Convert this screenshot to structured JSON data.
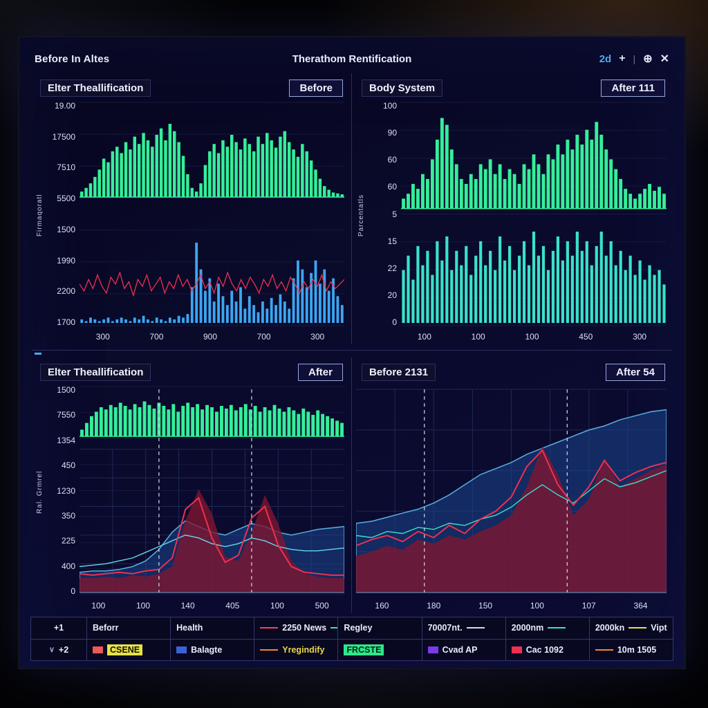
{
  "window": {
    "title_left": "Before In Altes",
    "title_center": "Therathom Rentification",
    "status": "2d",
    "controls": {
      "plus": "+",
      "sep": "|",
      "globe": "⊕",
      "close": "✕"
    }
  },
  "legend": {
    "rows": [
      [
        {
          "label": "+1",
          "first": true
        },
        {
          "label": "Beforr"
        },
        {
          "label": "Health"
        },
        {
          "swatch": "line",
          "color": "#ef4858",
          "label": "2250 News",
          "after": "#39e2c8"
        },
        {
          "label": "Regley"
        },
        {
          "label": "70007nt.",
          "after": "#d8dce8"
        },
        {
          "label": "2000nm",
          "after": "#39e2c8"
        },
        {
          "label": "2000kn",
          "after": "#e8e24a",
          "label2": "Vipt"
        }
      ],
      [
        {
          "label": "+2",
          "chev": "∨",
          "first": true
        },
        {
          "swatch": "box",
          "color": "#ef5858",
          "label": "CSENE",
          "label_bg": "#e8e24a",
          "label_color": "#141408"
        },
        {
          "swatch": "box",
          "color": "#3a62d8",
          "label": "Balagte"
        },
        {
          "swatch": "line",
          "color": "#ef8838",
          "label": "Yregindify",
          "label_color": "#e8d84a"
        },
        {
          "label": "FRCSTE",
          "label_bg": "#2ee88a",
          "label_color": "#06251a"
        },
        {
          "swatch": "box",
          "color": "#7a3ae8",
          "label": "Cvad AP"
        },
        {
          "swatch": "box",
          "color": "#ef3050",
          "label": "Cac 1092"
        },
        {
          "swatch": "line",
          "color": "#ef8838",
          "label": "10m 1505"
        }
      ]
    ]
  },
  "chart_data": [
    {
      "panel": "p1",
      "type": "bar",
      "layout": "spectrum-noise",
      "title": "Elter Theallification",
      "badge": "Before",
      "ylabel": "Firmaqoratl",
      "y_ticks": [
        "19.00",
        "17500",
        "7510",
        "5500",
        "1500",
        "1990",
        "2200",
        "1700"
      ],
      "x_ticks": [
        "300",
        "700",
        "900",
        "700",
        "300"
      ],
      "colors": {
        "green": "#34ef9a",
        "blue": "#3ba6f2",
        "red": "#ef3050"
      },
      "series": {
        "green": [
          0.06,
          0.1,
          0.15,
          0.22,
          0.3,
          0.42,
          0.38,
          0.5,
          0.55,
          0.48,
          0.6,
          0.52,
          0.66,
          0.58,
          0.7,
          0.62,
          0.55,
          0.68,
          0.75,
          0.62,
          0.8,
          0.72,
          0.6,
          0.45,
          0.25,
          0.1,
          0.06,
          0.15,
          0.35,
          0.5,
          0.58,
          0.48,
          0.62,
          0.55,
          0.68,
          0.6,
          0.52,
          0.64,
          0.58,
          0.5,
          0.66,
          0.58,
          0.7,
          0.62,
          0.54,
          0.66,
          0.72,
          0.6,
          0.52,
          0.44,
          0.58,
          0.5,
          0.4,
          0.3,
          0.2,
          0.12,
          0.08,
          0.05,
          0.04,
          0.03
        ],
        "red": [
          0.8,
          0.83,
          0.78,
          0.82,
          0.76,
          0.81,
          0.84,
          0.77,
          0.8,
          0.75,
          0.82,
          0.79,
          0.85,
          0.78,
          0.81,
          0.76,
          0.83,
          0.8,
          0.77,
          0.84,
          0.79,
          0.82,
          0.76,
          0.81,
          0.78,
          0.83,
          0.8,
          0.76,
          0.82,
          0.79,
          0.84,
          0.77,
          0.81,
          0.75,
          0.8,
          0.83,
          0.78,
          0.82,
          0.77,
          0.8,
          0.84,
          0.78,
          0.81,
          0.76,
          0.82,
          0.79,
          0.83,
          0.77,
          0.8,
          0.84,
          0.79,
          0.82,
          0.78,
          0.81,
          0.76,
          0.83,
          0.79,
          0.82,
          0.8,
          0.78
        ],
        "blue": [
          0.02,
          0.01,
          0.03,
          0.02,
          0.01,
          0.02,
          0.03,
          0.01,
          0.02,
          0.03,
          0.02,
          0.01,
          0.03,
          0.02,
          0.04,
          0.02,
          0.01,
          0.03,
          0.02,
          0.01,
          0.03,
          0.02,
          0.04,
          0.03,
          0.05,
          0.2,
          0.45,
          0.3,
          0.18,
          0.25,
          0.12,
          0.22,
          0.15,
          0.1,
          0.18,
          0.12,
          0.2,
          0.08,
          0.15,
          0.1,
          0.06,
          0.12,
          0.08,
          0.14,
          0.1,
          0.16,
          0.12,
          0.08,
          0.25,
          0.35,
          0.3,
          0.2,
          0.28,
          0.35,
          0.22,
          0.3,
          0.18,
          0.25,
          0.15,
          0.1
        ]
      }
    },
    {
      "panel": "p2",
      "type": "bar",
      "layout": "mirror-bars",
      "title": "Body System",
      "badge": "After 111",
      "ylabel": "Parcentatls",
      "y_ticks": [
        "100",
        "90",
        "60",
        "60",
        "5",
        "15",
        "22",
        "20",
        "0"
      ],
      "x_ticks": [
        "100",
        "100",
        "100",
        "450",
        "300"
      ],
      "colors": {
        "green": "#34ef9a",
        "teal": "#39e2c8"
      },
      "series": {
        "green": [
          0.1,
          0.15,
          0.25,
          0.2,
          0.35,
          0.3,
          0.5,
          0.7,
          0.92,
          0.85,
          0.6,
          0.45,
          0.3,
          0.25,
          0.35,
          0.3,
          0.45,
          0.4,
          0.5,
          0.35,
          0.45,
          0.3,
          0.4,
          0.35,
          0.25,
          0.45,
          0.4,
          0.55,
          0.45,
          0.35,
          0.55,
          0.5,
          0.65,
          0.55,
          0.7,
          0.6,
          0.75,
          0.65,
          0.8,
          0.7,
          0.88,
          0.75,
          0.6,
          0.5,
          0.4,
          0.3,
          0.2,
          0.15,
          0.1,
          0.15,
          0.2,
          0.25,
          0.18,
          0.22,
          0.15
        ],
        "teal": [
          0.55,
          0.7,
          0.45,
          0.8,
          0.6,
          0.75,
          0.5,
          0.85,
          0.65,
          0.9,
          0.55,
          0.75,
          0.6,
          0.8,
          0.5,
          0.7,
          0.85,
          0.6,
          0.75,
          0.55,
          0.9,
          0.65,
          0.8,
          0.55,
          0.7,
          0.85,
          0.6,
          0.95,
          0.7,
          0.8,
          0.55,
          0.75,
          0.9,
          0.65,
          0.85,
          0.7,
          0.95,
          0.75,
          0.85,
          0.6,
          0.8,
          0.95,
          0.7,
          0.85,
          0.6,
          0.75,
          0.55,
          0.7,
          0.5,
          0.65,
          0.45,
          0.6,
          0.5,
          0.55,
          0.4
        ]
      }
    },
    {
      "panel": "p3",
      "type": "area",
      "layout": "strip-lines",
      "title": "Elter Theallification",
      "badge": "After",
      "ylabel": "Ral. Grmrel",
      "y_ticks": [
        "1500",
        "7550",
        "1354",
        "450",
        "1230",
        "350",
        "225",
        "400",
        "0"
      ],
      "x_ticks": [
        "100",
        "100",
        "140",
        "405",
        "100",
        "500"
      ],
      "dashed": [
        0.3,
        0.65
      ],
      "colors": {
        "green": "#34ef9a"
      },
      "series": {
        "green": [
          0.15,
          0.3,
          0.45,
          0.55,
          0.65,
          0.6,
          0.7,
          0.65,
          0.75,
          0.68,
          0.6,
          0.72,
          0.65,
          0.78,
          0.7,
          0.62,
          0.75,
          0.68,
          0.6,
          0.72,
          0.55,
          0.68,
          0.75,
          0.65,
          0.72,
          0.6,
          0.7,
          0.65,
          0.55,
          0.68,
          0.62,
          0.7,
          0.58,
          0.65,
          0.72,
          0.6,
          0.68,
          0.55,
          0.65,
          0.58,
          0.7,
          0.62,
          0.55,
          0.65,
          0.58,
          0.5,
          0.62,
          0.55,
          0.48,
          0.58,
          0.5,
          0.45,
          0.4,
          0.35,
          0.3
        ],
        "blue_area": [
          0.14,
          0.15,
          0.15,
          0.16,
          0.18,
          0.22,
          0.3,
          0.42,
          0.5,
          0.46,
          0.42,
          0.4,
          0.44,
          0.48,
          0.46,
          0.42,
          0.4,
          0.42,
          0.44,
          0.45,
          0.46
        ],
        "red_area": [
          0.1,
          0.1,
          0.11,
          0.1,
          0.12,
          0.11,
          0.13,
          0.18,
          0.5,
          0.72,
          0.55,
          0.25,
          0.22,
          0.42,
          0.68,
          0.48,
          0.22,
          0.13,
          0.11,
          0.1,
          0.1
        ],
        "red_line": [
          0.13,
          0.12,
          0.13,
          0.14,
          0.13,
          0.15,
          0.16,
          0.24,
          0.58,
          0.66,
          0.38,
          0.21,
          0.26,
          0.52,
          0.6,
          0.33,
          0.18,
          0.14,
          0.13,
          0.12,
          0.12
        ],
        "cyan_line": [
          0.18,
          0.19,
          0.2,
          0.22,
          0.24,
          0.28,
          0.32,
          0.36,
          0.4,
          0.38,
          0.34,
          0.32,
          0.34,
          0.38,
          0.36,
          0.32,
          0.3,
          0.29,
          0.29,
          0.3,
          0.31
        ]
      }
    },
    {
      "panel": "p4",
      "type": "area",
      "layout": "lines-area",
      "title": "Before 2131",
      "badge": "After 54",
      "x_ticks": [
        "160",
        "180",
        "150",
        "100",
        "107",
        "364"
      ],
      "dashed": [
        0.22,
        0.68
      ],
      "colors": {},
      "series": {
        "blue_area": [
          0.34,
          0.35,
          0.37,
          0.39,
          0.41,
          0.44,
          0.48,
          0.53,
          0.58,
          0.61,
          0.64,
          0.68,
          0.71,
          0.74,
          0.77,
          0.8,
          0.82,
          0.85,
          0.87,
          0.89,
          0.9
        ],
        "red_area": [
          0.18,
          0.2,
          0.23,
          0.21,
          0.26,
          0.24,
          0.28,
          0.26,
          0.3,
          0.33,
          0.38,
          0.52,
          0.72,
          0.58,
          0.38,
          0.46,
          0.66,
          0.52,
          0.56,
          0.6,
          0.63
        ],
        "red_line": [
          0.23,
          0.26,
          0.28,
          0.25,
          0.3,
          0.27,
          0.33,
          0.29,
          0.36,
          0.4,
          0.47,
          0.62,
          0.7,
          0.53,
          0.43,
          0.52,
          0.65,
          0.55,
          0.59,
          0.62,
          0.64
        ],
        "teal_line": [
          0.28,
          0.27,
          0.3,
          0.29,
          0.32,
          0.31,
          0.34,
          0.33,
          0.36,
          0.38,
          0.42,
          0.48,
          0.53,
          0.48,
          0.44,
          0.5,
          0.56,
          0.52,
          0.54,
          0.57,
          0.6
        ]
      }
    }
  ]
}
